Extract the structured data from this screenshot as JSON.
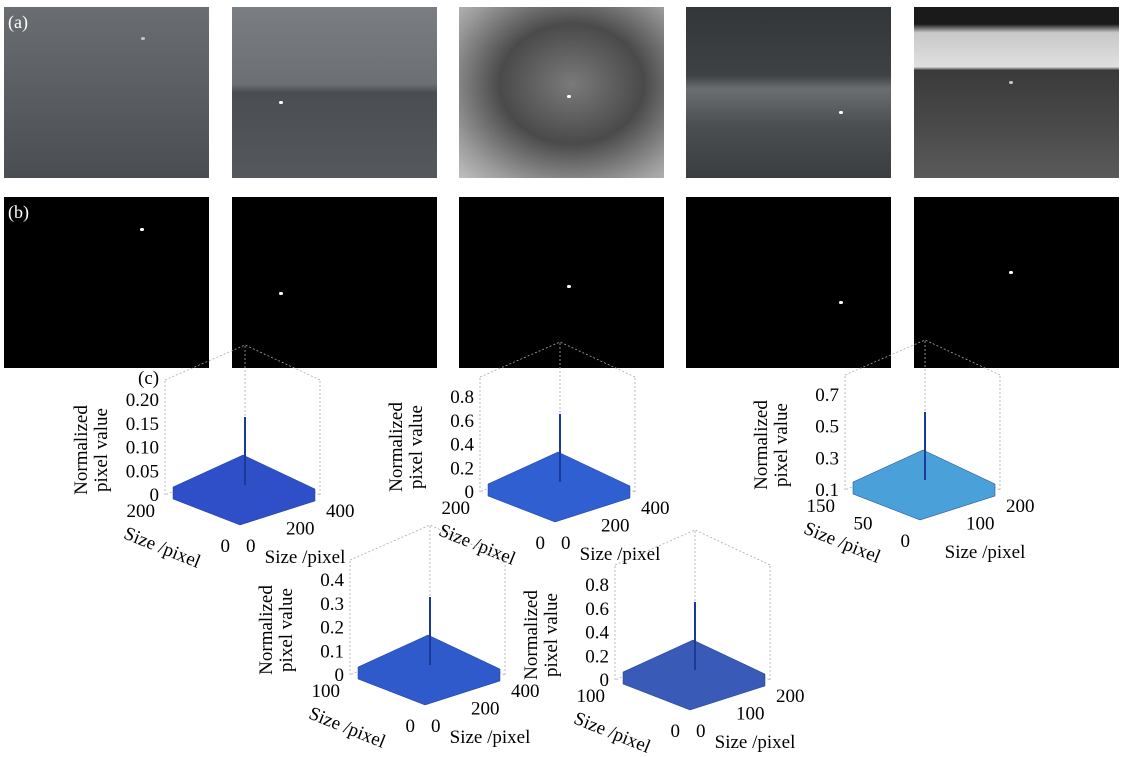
{
  "panel_a": {
    "label": "(a)"
  },
  "panel_b": {
    "label": "(b)"
  },
  "panel_c": {
    "label": "(c)",
    "plots": [
      {
        "z_label": [
          "Normalized",
          "pixel value"
        ],
        "z_ticks": [
          "0",
          "0.05",
          "0.10",
          "0.15",
          "0.20"
        ],
        "left_ticks": [
          "200",
          "0"
        ],
        "right_ticks": [
          "0",
          "200",
          "400"
        ],
        "left_axis_label": "Size /pixel",
        "right_axis_label": "Size /pixel"
      },
      {
        "z_label": [
          "Normalized",
          "pixel value"
        ],
        "z_ticks": [
          "0",
          "0.2",
          "0.4",
          "0.6",
          "0.8"
        ],
        "left_ticks": [
          "200",
          "0"
        ],
        "right_ticks": [
          "0",
          "200",
          "400"
        ],
        "left_axis_label": "Size /pixel",
        "right_axis_label": "Size /pixel"
      },
      {
        "z_label": [
          "Normalized",
          "pixel value"
        ],
        "z_ticks": [
          "0.1",
          "0.3",
          "0.5",
          "0.7"
        ],
        "left_ticks": [
          "150",
          "50",
          "0"
        ],
        "right_ticks": [
          "100",
          "200"
        ],
        "left_axis_label": "Size /pixel",
        "right_axis_label": "Size /pixel"
      },
      {
        "z_label": [
          "Normalized",
          "pixel value"
        ],
        "z_ticks": [
          "0",
          "0.1",
          "0.2",
          "0.3",
          "0.4"
        ],
        "left_ticks": [
          "100",
          "0"
        ],
        "right_ticks": [
          "0",
          "200",
          "400"
        ],
        "left_axis_label": "Size /pixel",
        "right_axis_label": "Size /pixel"
      },
      {
        "z_label": [
          "Normalized",
          "pixel value"
        ],
        "z_ticks": [
          "0",
          "0.2",
          "0.4",
          "0.6",
          "0.8"
        ],
        "left_ticks": [
          "100",
          "0"
        ],
        "right_ticks": [
          "0",
          "100",
          "200"
        ],
        "left_axis_label": "Size /pixel",
        "right_axis_label": "Size /pixel"
      }
    ]
  }
}
